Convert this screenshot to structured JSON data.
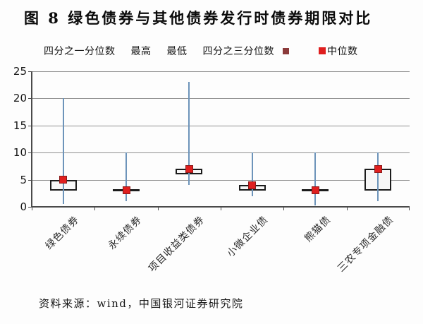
{
  "title": "图 8  绿色债券与其他债券发行时债券期限对比",
  "legend": {
    "quartile1": "四分之一分位数",
    "high": "最高",
    "low": "最低",
    "quartile3": "四分之三分位数",
    "median": "中位数",
    "quartile3_marker_color": "#8b3a3a",
    "median_marker_color": "#df1f1f"
  },
  "source_note": "资料来源：wind，中国银河证券研究院",
  "chart_data": {
    "type": "boxplot",
    "title": "图 8 绿色债券与其他债券发行时债券期限对比",
    "categories": [
      "绿色债券",
      "永续债券",
      "项目收益类债券",
      "小微企业债",
      "熊猫债",
      "三农专项金融债"
    ],
    "series": [
      {
        "name": "绿色债券",
        "low": 0.5,
        "q1": 3,
        "median": 5,
        "q3": 5,
        "high": 20
      },
      {
        "name": "永续债券",
        "low": 1,
        "q1": 3,
        "median": 3,
        "q3": 3,
        "high": 10
      },
      {
        "name": "项目收益类债券",
        "low": 4,
        "q1": 6,
        "median": 7,
        "q3": 7,
        "high": 23
      },
      {
        "name": "小微企业债",
        "low": 2,
        "q1": 3,
        "median": 4,
        "q3": 4,
        "high": 10
      },
      {
        "name": "熊猫债",
        "low": 0.2,
        "q1": 3,
        "median": 3,
        "q3": 3,
        "high": 10
      },
      {
        "name": "三农专项金融债",
        "low": 1,
        "q1": 3,
        "median": 7,
        "q3": 7,
        "high": 10
      }
    ],
    "xlabel": "",
    "ylabel": "",
    "ylim": [
      0,
      25
    ],
    "yticks": [
      0,
      5,
      10,
      15,
      20,
      25
    ],
    "grid": true,
    "legend_position": "top",
    "colors": {
      "whisker": "#6d94ba",
      "box_border": "#1c1c1c",
      "box_fill": "#f7f7f7",
      "median_fill": "#df1f1f",
      "median_border": "#8b1a1a",
      "gridline": "#909090",
      "axis": "#4a4a4a"
    }
  }
}
